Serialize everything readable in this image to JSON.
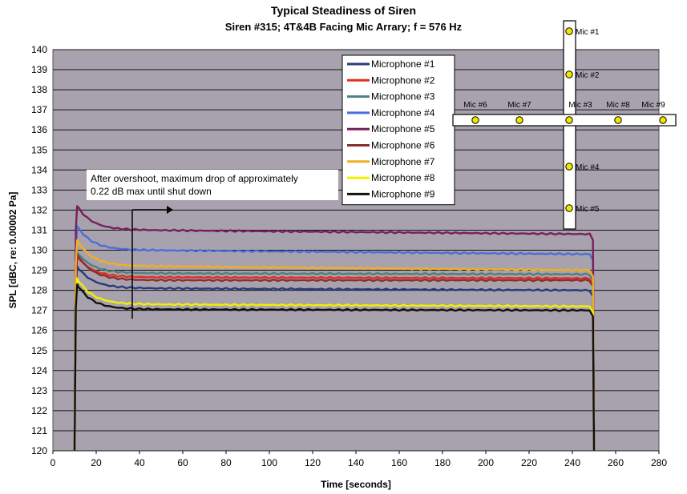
{
  "chart_data": {
    "type": "line",
    "title": "Typical Steadiness of Siren",
    "subtitle": "Siren #315; 4T&4B Facing Mic Arrary; f = 576 Hz",
    "xlabel": "Time [seconds]",
    "ylabel": "SPL [dBC, re: 0.00002 Pa]",
    "xlim": [
      0,
      280
    ],
    "ylim": [
      120,
      140
    ],
    "x_ticks": [
      "0",
      "20",
      "40",
      "60",
      "80",
      "100",
      "120",
      "140",
      "160",
      "180",
      "200",
      "220",
      "240",
      "260",
      "280"
    ],
    "y_ticks": [
      "120",
      "121",
      "122",
      "123",
      "124",
      "125",
      "126",
      "127",
      "128",
      "129",
      "130",
      "131",
      "132",
      "133",
      "134",
      "135",
      "136",
      "137",
      "138",
      "139",
      "140"
    ],
    "grid": "horizontal",
    "legend_position": "top-center",
    "annotation": [
      "After overshoot, maximum drop of approximately",
      "0.22 dB max until shut down"
    ],
    "series": [
      {
        "name": "Microphone #1",
        "color": "#2b3a7a",
        "peak": 129.2,
        "steady": 128.1,
        "end": 128.0
      },
      {
        "name": "Microphone #2",
        "color": "#e03020",
        "peak": 129.7,
        "steady": 128.65,
        "end": 128.6
      },
      {
        "name": "Microphone #3",
        "color": "#4f8080",
        "peak": 129.9,
        "steady": 128.85,
        "end": 128.8
      },
      {
        "name": "Microphone #4",
        "color": "#4a6fd8",
        "peak": 131.2,
        "steady": 130.0,
        "end": 129.8
      },
      {
        "name": "Microphone #5",
        "color": "#7a1f5c",
        "peak": 132.2,
        "steady": 131.0,
        "end": 130.8
      },
      {
        "name": "Microphone #6",
        "color": "#8a2f2f",
        "peak": 129.8,
        "steady": 128.5,
        "end": 128.5
      },
      {
        "name": "Microphone #7",
        "color": "#f0b020",
        "peak": 130.5,
        "steady": 129.2,
        "end": 129.0
      },
      {
        "name": "Microphone #8",
        "color": "#f0f000",
        "peak": 128.6,
        "steady": 127.3,
        "end": 127.2
      },
      {
        "name": "Microphone #9",
        "color": "#111111",
        "peak": 128.3,
        "steady": 127.05,
        "end": 127.0
      }
    ],
    "time_start": 10,
    "time_end": 250
  },
  "mic_array": {
    "vertical": [
      "Mic #1",
      "Mic #2",
      "Mic #4",
      "Mic #5"
    ],
    "horizontal": [
      "Mic #6",
      "Mic #7",
      "Mic #3",
      "Mic #8",
      "Mic #9"
    ]
  }
}
